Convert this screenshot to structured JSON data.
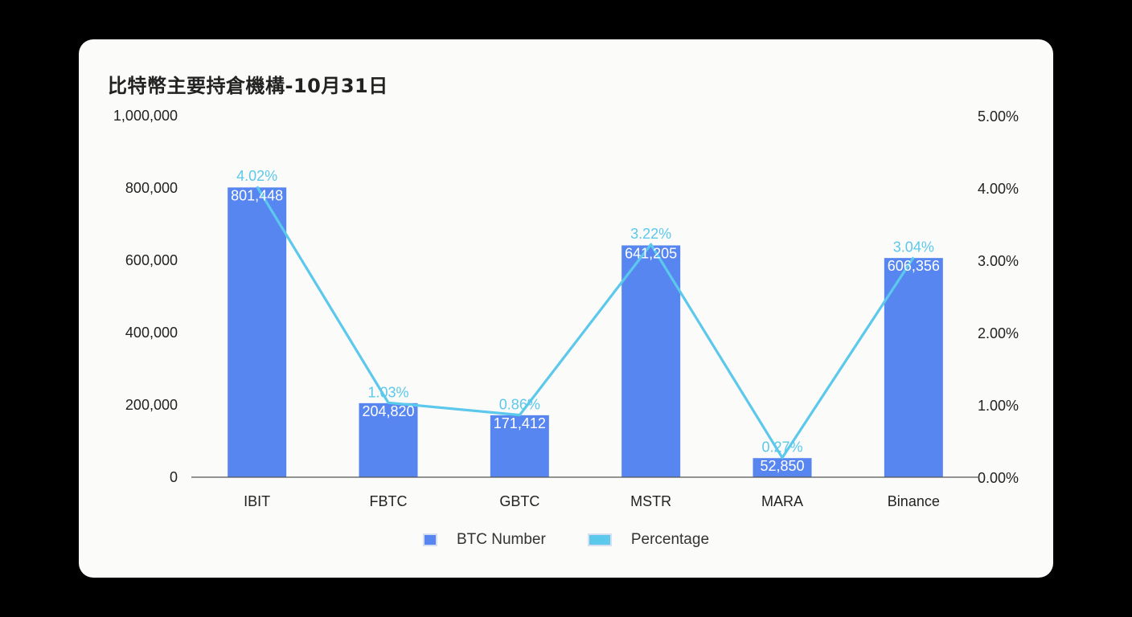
{
  "chart_data": {
    "type": "bar",
    "title": "比特幣主要持倉機構-10月31日",
    "categories": [
      "IBIT",
      "FBTC",
      "GBTC",
      "MSTR",
      "MARA",
      "Binance"
    ],
    "series": [
      {
        "name": "BTC Number",
        "type": "bar",
        "axis": "left",
        "color": "#5886f1",
        "values": [
          801448,
          204820,
          171412,
          641205,
          52850,
          606356
        ],
        "labels": [
          "801,448",
          "204,820",
          "171,412",
          "641,205",
          "52,850",
          "606,356"
        ]
      },
      {
        "name": "Percentage",
        "type": "line",
        "axis": "right",
        "color": "#5bc8ec",
        "values": [
          4.02,
          1.03,
          0.86,
          3.22,
          0.27,
          3.04
        ],
        "labels": [
          "4.02%",
          "1.03%",
          "0.86%",
          "3.22%",
          "0.27%",
          "3.04%"
        ]
      }
    ],
    "y_left": {
      "ylim": [
        0,
        1000000
      ],
      "ticks": [
        "0",
        "200,000",
        "400,000",
        "600,000",
        "800,000",
        "1,000,000"
      ]
    },
    "y_right": {
      "ylim": [
        0,
        5
      ],
      "ticks": [
        "0.00%",
        "1.00%",
        "2.00%",
        "3.00%",
        "4.00%",
        "5.00%"
      ]
    },
    "grid": false,
    "legend": "bottom-center"
  },
  "legend": {
    "bar_label": "BTC Number",
    "line_label": "Percentage"
  }
}
